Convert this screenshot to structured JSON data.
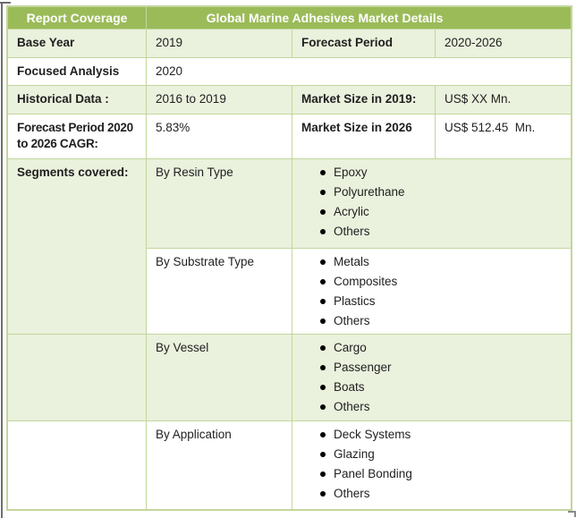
{
  "colors": {
    "header-bg": "#9BBB59",
    "band-bg": "#EAF1DD",
    "grid-border": "#C3D69B",
    "header-text": "#FFFFFF",
    "body-text": "#1F1F1F",
    "handle-gray": "#8C8C8C"
  },
  "table": {
    "header": {
      "coverage": "Report Coverage",
      "title": "Global Marine Adhesives Market Details"
    },
    "rows": {
      "base_year": {
        "label": "Base Year",
        "value": "2019",
        "label2": "Forecast Period",
        "value2": "2020-2026"
      },
      "focused": {
        "label": "Focused Analysis",
        "value": "2020"
      },
      "historical": {
        "label": "Historical Data :",
        "value": "2016 to 2019",
        "label2": "Market Size in 2019:",
        "value2": "US$ XX Mn."
      },
      "cagr": {
        "label": "Forecast Period 2020 to 2026 CAGR:",
        "value": "5.83%",
        "label2": "Market Size in 2026",
        "value2": "US$ 512.45  Mn."
      },
      "segments_label": "Segments covered:"
    },
    "segments": [
      {
        "category": "By Resin Type",
        "items": [
          "Epoxy",
          "Polyurethane",
          "Acrylic",
          "Others"
        ]
      },
      {
        "category": "By Substrate Type",
        "items": [
          "Metals",
          "Composites",
          "Plastics",
          "Others"
        ]
      },
      {
        "category": "By Vessel",
        "items": [
          "Cargo",
          "Passenger",
          "Boats",
          "Others"
        ]
      },
      {
        "category": "By Application",
        "items": [
          "Deck Systems",
          "Glazing",
          "Panel Bonding",
          "Others"
        ]
      }
    ]
  }
}
